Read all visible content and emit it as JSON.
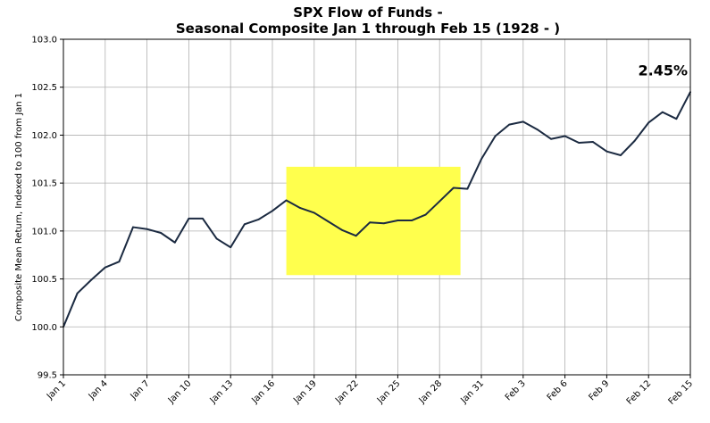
{
  "chart_data": {
    "type": "line",
    "title_line1": "SPX Flow of Funds -",
    "title_line2": "Seasonal Composite Jan 1 through Feb 15 (1928 - )",
    "xlabel": "",
    "ylabel": "Composite Mean Return, Indexed to 100 from Jan 1",
    "ylim": [
      99.5,
      103.0
    ],
    "xlim": [
      0,
      45
    ],
    "grid": true,
    "line_color": "#1b2a41",
    "highlight_color": "#ffff4d",
    "highlight": {
      "x_start": 16,
      "x_end": 28.5,
      "y_start": 100.54,
      "y_end": 101.67
    },
    "annotation": {
      "text": "2.45%",
      "x": 45,
      "y": 102.68
    },
    "y_ticks": [
      {
        "value": 99.5,
        "label": "99.5"
      },
      {
        "value": 100.0,
        "label": "100.0"
      },
      {
        "value": 100.5,
        "label": "100.5"
      },
      {
        "value": 101.0,
        "label": "101.0"
      },
      {
        "value": 101.5,
        "label": "101.5"
      },
      {
        "value": 102.0,
        "label": "102.0"
      },
      {
        "value": 102.5,
        "label": "102.5"
      },
      {
        "value": 103.0,
        "label": "103.0"
      }
    ],
    "x_ticks": [
      {
        "value": 0,
        "label": "Jan 1"
      },
      {
        "value": 3,
        "label": "Jan 4"
      },
      {
        "value": 6,
        "label": "Jan 7"
      },
      {
        "value": 9,
        "label": "Jan 10"
      },
      {
        "value": 12,
        "label": "Jan 13"
      },
      {
        "value": 15,
        "label": "Jan 16"
      },
      {
        "value": 18,
        "label": "Jan 19"
      },
      {
        "value": 21,
        "label": "Jan 22"
      },
      {
        "value": 24,
        "label": "Jan 25"
      },
      {
        "value": 27,
        "label": "Jan 28"
      },
      {
        "value": 30,
        "label": "Jan 31"
      },
      {
        "value": 33,
        "label": "Feb 3"
      },
      {
        "value": 36,
        "label": "Feb 6"
      },
      {
        "value": 39,
        "label": "Feb 9"
      },
      {
        "value": 42,
        "label": "Feb 12"
      },
      {
        "value": 45,
        "label": "Feb 15"
      }
    ],
    "series": [
      {
        "x": [
          0,
          1,
          2,
          3,
          4,
          5,
          6,
          7,
          8,
          9,
          10,
          11,
          12,
          13,
          14,
          15,
          16,
          17,
          18,
          19,
          20,
          21,
          22,
          23,
          24,
          25,
          26,
          27,
          28,
          29,
          30,
          31,
          32,
          33,
          34,
          35,
          36,
          37,
          38,
          39,
          40,
          41,
          42,
          43,
          44,
          45
        ],
        "values": [
          100.0,
          100.35,
          100.49,
          100.62,
          100.68,
          101.04,
          101.02,
          100.98,
          100.88,
          101.13,
          101.13,
          100.92,
          100.83,
          101.07,
          101.12,
          101.21,
          101.32,
          101.24,
          101.19,
          101.1,
          101.01,
          100.95,
          101.09,
          101.08,
          101.11,
          101.11,
          101.17,
          101.31,
          101.45,
          101.44,
          101.75,
          101.99,
          102.11,
          102.14,
          102.06,
          101.96,
          101.99,
          101.92,
          101.93,
          101.83,
          101.79,
          101.94,
          102.13,
          102.24,
          102.17,
          102.45
        ]
      }
    ]
  }
}
